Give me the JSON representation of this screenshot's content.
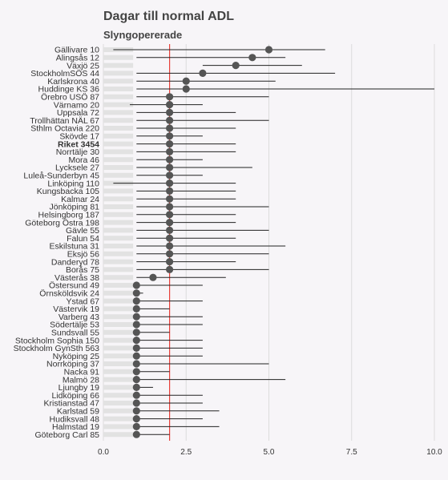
{
  "chart_data": {
    "type": "dot-range",
    "title": "Dagar till normal ADL",
    "subtitle": "Slyngopererade",
    "xlim": [
      0,
      10
    ],
    "xticks": [
      "0.0",
      "2.5",
      "5.0",
      "7.5",
      "10.0"
    ],
    "reference_line": 2,
    "highlight": "Riket 3454",
    "rows": [
      {
        "label": "Gällivare 10",
        "value": 5,
        "low": 0.3,
        "high": 6.7
      },
      {
        "label": "Alingsås 12",
        "value": 4.5,
        "low": 1,
        "high": 5.5
      },
      {
        "label": "Växjö 25",
        "value": 4,
        "low": 3,
        "high": 6
      },
      {
        "label": "StockholmSÖS 44",
        "value": 3,
        "low": 1,
        "high": 7
      },
      {
        "label": "Karlskrona 40",
        "value": 2.5,
        "low": 1,
        "high": 5.2
      },
      {
        "label": "Huddinge KS 36",
        "value": 2.5,
        "low": 1,
        "high": 10
      },
      {
        "label": "Örebro USÖ 87",
        "value": 2,
        "low": 1,
        "high": 5
      },
      {
        "label": "Värnamo 20",
        "value": 2,
        "low": 0.8,
        "high": 3
      },
      {
        "label": "Uppsala 72",
        "value": 2,
        "low": 1,
        "high": 4
      },
      {
        "label": "Trollhättan NÄL 67",
        "value": 2,
        "low": 1,
        "high": 5
      },
      {
        "label": "Sthlm Octavia 220",
        "value": 2,
        "low": 1,
        "high": 4
      },
      {
        "label": "Skövde 17",
        "value": 2,
        "low": 1,
        "high": 3
      },
      {
        "label": "Riket 3454",
        "value": 2,
        "low": 1,
        "high": 4
      },
      {
        "label": "Norrtälje 30",
        "value": 2,
        "low": 1,
        "high": 4
      },
      {
        "label": "Mora 46",
        "value": 2,
        "low": 1,
        "high": 3
      },
      {
        "label": "Lycksele 27",
        "value": 2,
        "low": 1,
        "high": 4.5
      },
      {
        "label": "Luleå-Sunderbyn 45",
        "value": 2,
        "low": 1,
        "high": 3
      },
      {
        "label": "Linköping 110",
        "value": 2,
        "low": 0.3,
        "high": 4
      },
      {
        "label": "Kungsbacka 105",
        "value": 2,
        "low": 1,
        "high": 4
      },
      {
        "label": "Kalmar 24",
        "value": 2,
        "low": 1,
        "high": 4
      },
      {
        "label": "Jönköping 81",
        "value": 2,
        "low": 1,
        "high": 5
      },
      {
        "label": "Helsingborg 187",
        "value": 2,
        "low": 1,
        "high": 4
      },
      {
        "label": "Göteborg Östra 198",
        "value": 2,
        "low": 1,
        "high": 4
      },
      {
        "label": "Gävle 55",
        "value": 2,
        "low": 1,
        "high": 5
      },
      {
        "label": "Falun 54",
        "value": 2,
        "low": 1,
        "high": 4
      },
      {
        "label": "Eskilstuna 31",
        "value": 2,
        "low": 1,
        "high": 5.5
      },
      {
        "label": "Eksjö 56",
        "value": 2,
        "low": 1,
        "high": 5
      },
      {
        "label": "Danderyd 78",
        "value": 2,
        "low": 1,
        "high": 4
      },
      {
        "label": "Borås 75",
        "value": 2,
        "low": 1,
        "high": 5
      },
      {
        "label": "Västerås 38",
        "value": 1.5,
        "low": 1,
        "high": 3.7
      },
      {
        "label": "Östersund 49",
        "value": 1,
        "low": 1,
        "high": 3
      },
      {
        "label": "Örnsköldsvik 24",
        "value": 1,
        "low": 1,
        "high": 1.2
      },
      {
        "label": "Ystad 67",
        "value": 1,
        "low": 1,
        "high": 3
      },
      {
        "label": "Västervik 19",
        "value": 1,
        "low": 1,
        "high": 2
      },
      {
        "label": "Varberg 43",
        "value": 1,
        "low": 1,
        "high": 3
      },
      {
        "label": "Södertälje 53",
        "value": 1,
        "low": 1,
        "high": 3
      },
      {
        "label": "Sundsvall 55",
        "value": 1,
        "low": 1,
        "high": 2
      },
      {
        "label": "Stockholm Sophia 150",
        "value": 1,
        "low": 1,
        "high": 3
      },
      {
        "label": "Stockholm GynSth 563",
        "value": 1,
        "low": 1,
        "high": 3
      },
      {
        "label": "Nyköping 25",
        "value": 1,
        "low": 1,
        "high": 3
      },
      {
        "label": "Norrköping 37",
        "value": 1,
        "low": 1,
        "high": 5
      },
      {
        "label": "Nacka 91",
        "value": 1,
        "low": 1,
        "high": 2
      },
      {
        "label": "Malmö 28",
        "value": 1,
        "low": 1,
        "high": 5.5
      },
      {
        "label": "Ljungby 19",
        "value": 1,
        "low": 1,
        "high": 1.5
      },
      {
        "label": "Lidköping 66",
        "value": 1,
        "low": 1,
        "high": 3
      },
      {
        "label": "Kristianstad 47",
        "value": 1,
        "low": 1,
        "high": 3
      },
      {
        "label": "Karlstad 59",
        "value": 1,
        "low": 1,
        "high": 3.5
      },
      {
        "label": "Hudiksvall 48",
        "value": 1,
        "low": 1,
        "high": 3
      },
      {
        "label": "Halmstad 19",
        "value": 1,
        "low": 1,
        "high": 3.5
      },
      {
        "label": "Göteborg Carl 85",
        "value": 1,
        "low": 1,
        "high": 2
      }
    ]
  }
}
